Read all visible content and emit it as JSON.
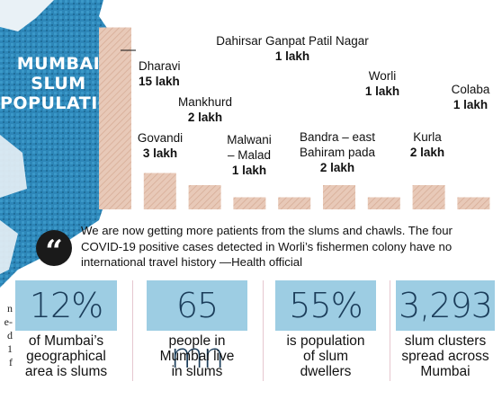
{
  "map": {
    "title_lines": [
      "MUMBAI",
      "SLUM",
      "POPULATION"
    ]
  },
  "chart_data": {
    "type": "bar",
    "categories": [
      "Dharavi",
      "Govandi",
      "Mankhurd",
      "Malwani – Malad",
      "Dahirsar Ganpat Patil Nagar",
      "Bandra – east Bahiram pada",
      "Worli",
      "Kurla",
      "Colaba"
    ],
    "values": [
      15,
      3,
      2,
      1,
      1,
      2,
      1,
      2,
      1
    ],
    "value_labels": [
      "15 lakh",
      "3 lakh",
      "2 lakh",
      "1 lakh",
      "1 lakh",
      "2 lakh",
      "1 lakh",
      "2 lakh",
      "1 lakh"
    ],
    "label_lines": [
      [
        "Dharavi"
      ],
      [
        "Govandi"
      ],
      [
        "Mankhurd"
      ],
      [
        "Malwani",
        "– Malad"
      ],
      [
        "Dahirsar Ganpat Patil Nagar"
      ],
      [
        "Bandra – east",
        "Bahiram pada"
      ],
      [
        "Worli"
      ],
      [
        "Kurla"
      ],
      [
        "Colaba"
      ]
    ],
    "unit": "lakh",
    "bar_color": "#e8c9b8",
    "hatch_color": "#d7ad97",
    "title": "",
    "xlabel": "",
    "ylabel": ""
  },
  "quote": {
    "text": "We are now getting more patients from the slums and chawls. The four COVID-19 positive cases detected in Worli’s fishermen colony have no international travel history —Health official"
  },
  "stats": [
    {
      "value": "12%",
      "label_lines": [
        "of Mumbai’s",
        "geographical",
        "area is slums"
      ]
    },
    {
      "value": "65 mn",
      "label_lines": [
        "people in",
        "Mumbai live",
        "in slums"
      ]
    },
    {
      "value": "55%",
      "label_lines": [
        "is population",
        "of slum",
        "dwellers"
      ]
    },
    {
      "value": "3,293",
      "label_lines": [
        "slum clusters",
        "spread across",
        "Mumbai"
      ]
    }
  ],
  "colors": {
    "stat_box": "#9dcde3",
    "stat_text": "#1b3d5a",
    "map_blue": "#2b85b5",
    "quote_icon": "#1a1a1a"
  },
  "left_column_fragment": [
    "n",
    "e-",
    "d",
    "1",
    "f"
  ]
}
